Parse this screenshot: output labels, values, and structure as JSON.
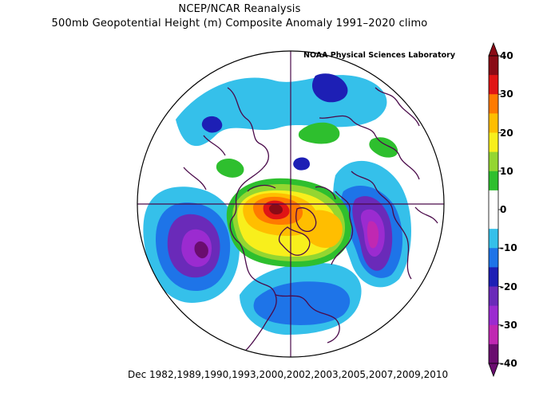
{
  "header": {
    "title": "NCEP/NCAR Reanalysis",
    "subtitle": "500mb Geopotential Height (m) Composite Anomaly 1991–2020 climo",
    "credit": "NOAA Physical Sciences Laboratory"
  },
  "footer": {
    "years": "Dec 1982,1989,1990,1993,2000,2002,2003,2005,2007,2009,2010"
  },
  "colorbar": {
    "labels": [
      "40",
      "30",
      "20",
      "10",
      "0",
      "-10",
      "-20",
      "-30",
      "-40"
    ],
    "colors": [
      "#8a0b16",
      "#e01515",
      "#ff7a00",
      "#ffbe00",
      "#f8ef1c",
      "#94d631",
      "#2ebf2e",
      "#ffffff",
      "#ffffff",
      "#35c0ea",
      "#1e74e8",
      "#1d1fb5",
      "#6a2ab9",
      "#9b2bd0",
      "#c028b2",
      "#6a0d6f"
    ]
  },
  "map": {
    "projection": "north polar stereographic",
    "anomalies": [
      {
        "name": "north-atlantic-pacific-ridge",
        "sign": "positive",
        "peak": 40
      },
      {
        "name": "north-pacific-trough",
        "sign": "negative",
        "peak": -40
      },
      {
        "name": "siberia-trough",
        "sign": "negative",
        "peak": -35
      },
      {
        "name": "north-america-trough",
        "sign": "negative",
        "peak": -20
      },
      {
        "name": "europe-trough",
        "sign": "negative",
        "peak": -20
      }
    ]
  }
}
